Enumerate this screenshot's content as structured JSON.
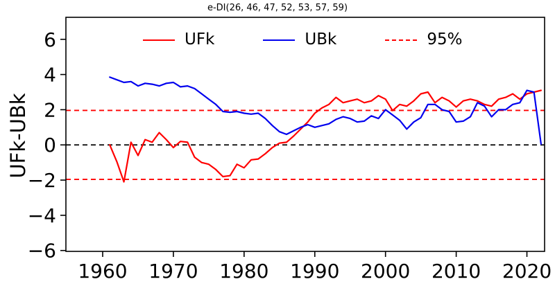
{
  "chart_data": {
    "type": "line",
    "title": "e-DI(26, 46, 47, 52, 53, 57, 59)",
    "xlabel": "",
    "ylabel": "UFk-UBk",
    "xlim": [
      1954.8,
      2022.5
    ],
    "ylim": [
      -6.05,
      7.25
    ],
    "grid": false,
    "x_ticks": {
      "values": [
        1960,
        1970,
        1980,
        1990,
        2000,
        2010,
        2020
      ],
      "labels": [
        "1960",
        "1970",
        "1980",
        "1990",
        "2000",
        "2010",
        "2020"
      ]
    },
    "y_ticks": {
      "values": [
        6,
        4,
        2,
        0,
        -2,
        -4,
        -6
      ],
      "labels": [
        "6",
        "4",
        "2",
        "0",
        "−2",
        "−4",
        "−6"
      ]
    },
    "reference_lines": [
      {
        "name": "zero-line",
        "value": 0,
        "color": "#000000",
        "style": "dashed"
      },
      {
        "name": "conf-95-upper",
        "value": 1.96,
        "color": "#ff0000",
        "style": "dashed"
      },
      {
        "name": "conf-95-lower",
        "value": -1.96,
        "color": "#ff0000",
        "style": "dashed"
      }
    ],
    "legend": {
      "position": "upper center",
      "entries": [
        {
          "label": "UFk",
          "color": "#ff0000",
          "style": "solid"
        },
        {
          "label": "UBk",
          "color": "#0000ee",
          "style": "solid"
        },
        {
          "label": "95%",
          "color": "#ff0000",
          "style": "dashed"
        }
      ]
    },
    "x": [
      1961,
      1962,
      1963,
      1964,
      1965,
      1966,
      1967,
      1968,
      1969,
      1970,
      1971,
      1972,
      1973,
      1974,
      1975,
      1976,
      1977,
      1978,
      1979,
      1980,
      1981,
      1982,
      1983,
      1984,
      1985,
      1986,
      1987,
      1988,
      1989,
      1990,
      1991,
      1992,
      1993,
      1994,
      1995,
      1996,
      1997,
      1998,
      1999,
      2000,
      2001,
      2002,
      2003,
      2004,
      2005,
      2006,
      2007,
      2008,
      2009,
      2010,
      2011,
      2012,
      2013,
      2014,
      2015,
      2016,
      2017,
      2018,
      2019,
      2020,
      2021,
      2022
    ],
    "series": [
      {
        "name": "UFk",
        "color": "#ff0000",
        "values": [
          0.0,
          -0.95,
          -2.1,
          0.15,
          -0.6,
          0.3,
          0.15,
          0.7,
          0.3,
          -0.15,
          0.2,
          0.15,
          -0.7,
          -1.0,
          -1.1,
          -1.4,
          -1.8,
          -1.75,
          -1.1,
          -1.3,
          -0.85,
          -0.8,
          -0.5,
          -0.15,
          0.1,
          0.15,
          0.5,
          0.9,
          1.3,
          1.8,
          2.1,
          2.3,
          2.7,
          2.4,
          2.5,
          2.6,
          2.4,
          2.5,
          2.8,
          2.6,
          1.95,
          2.3,
          2.2,
          2.5,
          2.9,
          3.0,
          2.4,
          2.7,
          2.5,
          2.15,
          2.5,
          2.6,
          2.5,
          2.3,
          2.2,
          2.6,
          2.7,
          2.9,
          2.6,
          2.9,
          3.0,
          3.1
        ]
      },
      {
        "name": "UBk",
        "color": "#0000ee",
        "values": [
          3.85,
          3.7,
          3.55,
          3.6,
          3.35,
          3.5,
          3.45,
          3.35,
          3.5,
          3.55,
          3.3,
          3.35,
          3.2,
          2.9,
          2.6,
          2.3,
          1.9,
          1.85,
          1.9,
          1.8,
          1.75,
          1.8,
          1.5,
          1.1,
          0.75,
          0.6,
          0.8,
          1.0,
          1.15,
          1.0,
          1.1,
          1.2,
          1.45,
          1.6,
          1.5,
          1.3,
          1.35,
          1.65,
          1.5,
          2.0,
          1.7,
          1.4,
          0.9,
          1.3,
          1.55,
          2.3,
          2.3,
          2.0,
          1.9,
          1.3,
          1.35,
          1.6,
          2.4,
          2.2,
          1.6,
          2.0,
          2.0,
          2.3,
          2.4,
          3.1,
          3.0,
          0.05
        ]
      }
    ]
  }
}
